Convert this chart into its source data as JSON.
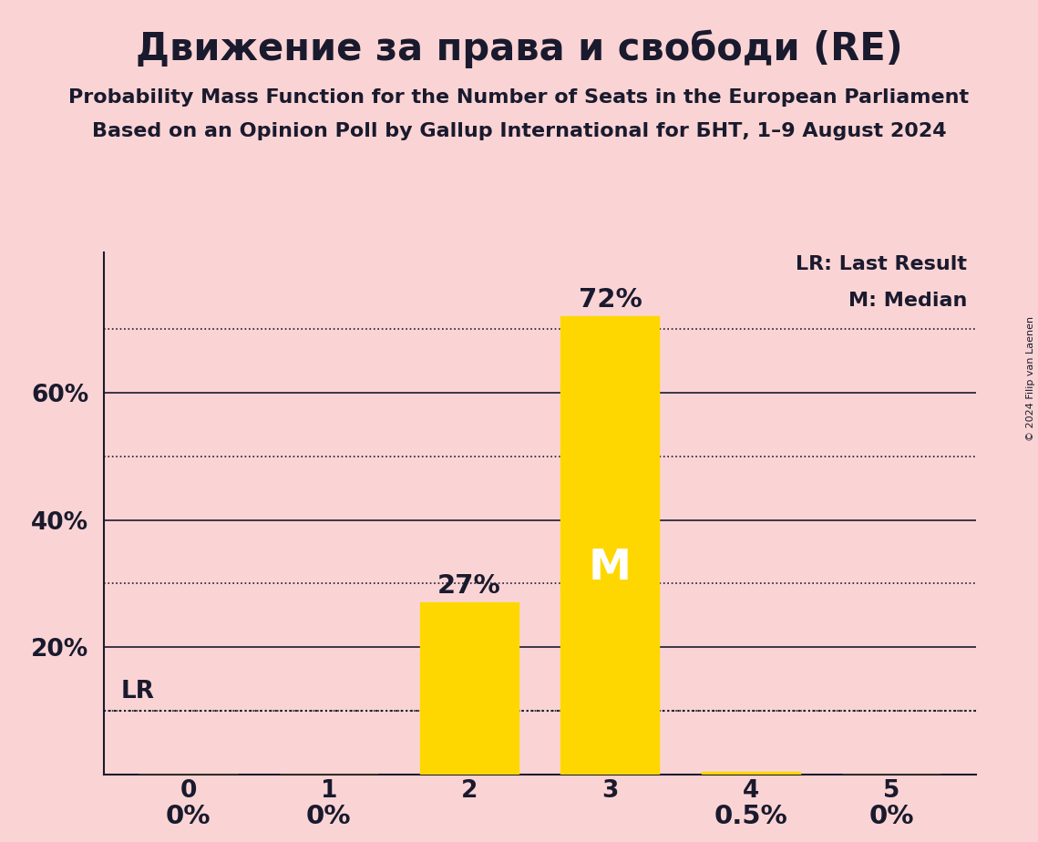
{
  "title": "Движение за права и свободи (RE)",
  "subtitle1": "Probability Mass Function for the Number of Seats in the European Parliament",
  "subtitle2": "Based on an Opinion Poll by Gallup International for БНТ, 1–9 August 2024",
  "copyright": "© 2024 Filip van Laenen",
  "categories": [
    0,
    1,
    2,
    3,
    4,
    5
  ],
  "values": [
    0.0,
    0.0,
    0.27,
    0.72,
    0.005,
    0.0
  ],
  "bar_color": "#FFD700",
  "background_color": "#FAD4D4",
  "text_color": "#1a1a2e",
  "bar_labels": [
    "0%",
    "0%",
    "27%",
    "72%",
    "0.5%",
    "0%"
  ],
  "median_index": 3,
  "median_label": "M",
  "lr_level": 0.1,
  "lr_label": "LR",
  "legend_lr": "LR: Last Result",
  "legend_m": "M: Median",
  "ylim": [
    0,
    0.82
  ],
  "yticks": [
    0.2,
    0.4,
    0.6
  ],
  "ytick_labels": [
    "20%",
    "40%",
    "60%"
  ],
  "solid_yticks": [
    0.0,
    0.2,
    0.4,
    0.6
  ],
  "dotted_yticks": [
    0.1,
    0.3,
    0.5,
    0.7
  ],
  "title_fontsize": 30,
  "subtitle_fontsize": 16,
  "tick_fontsize": 19,
  "label_fontsize": 19,
  "annotation_fontsize": 21,
  "legend_fontsize": 16,
  "median_fontsize": 34
}
